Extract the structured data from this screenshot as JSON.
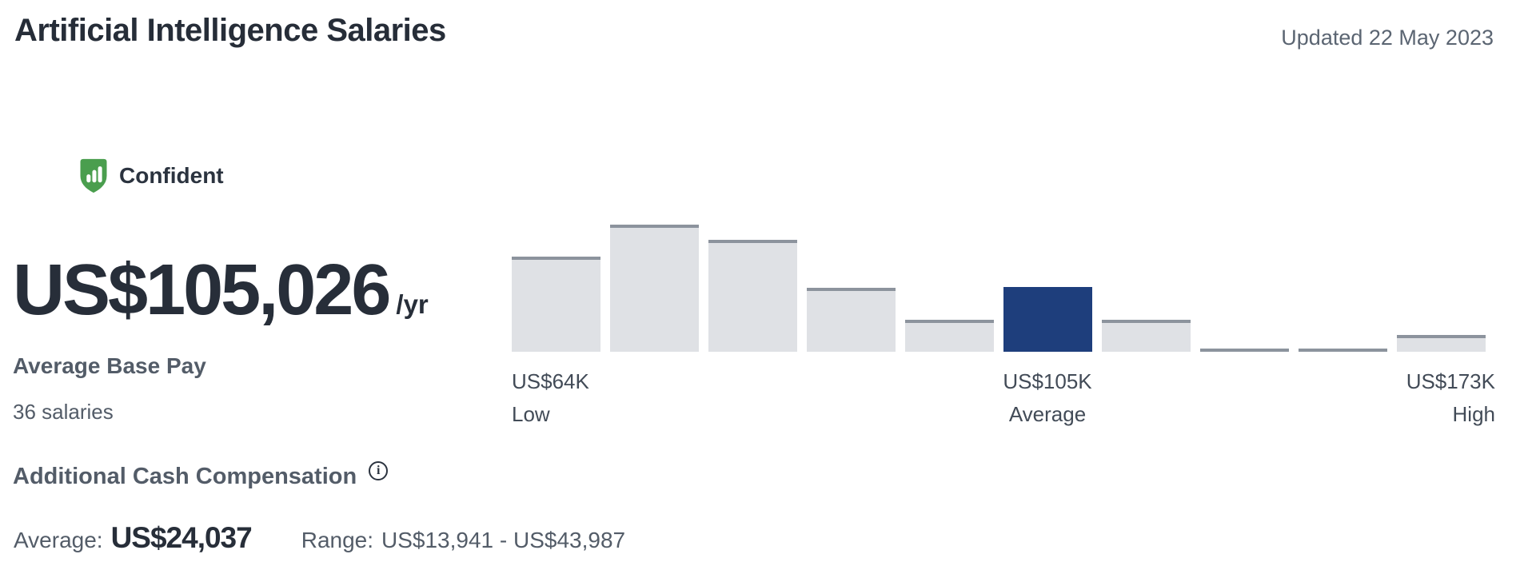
{
  "header": {
    "title": "Artificial Intelligence Salaries",
    "updated": "Updated 22 May 2023"
  },
  "confidence": {
    "label": "Confident",
    "shield_color": "#4a9e4e"
  },
  "base_pay": {
    "amount": "US$105,026",
    "period": "/yr",
    "label": "Average Base Pay",
    "sample_size": "36 salaries"
  },
  "additional_compensation": {
    "heading": "Additional Cash Compensation",
    "average_label": "Average:",
    "average_value": "US$24,037",
    "range_label": "Range:",
    "range_value": "US$13,941 - US$43,987"
  },
  "icons": {
    "confident_shield": "shield-with-bar-chart",
    "info": "circled-i"
  },
  "chart_data": {
    "type": "bar",
    "title": "Base pay distribution histogram",
    "values": [
      0.75,
      1.0,
      0.88,
      0.5,
      0.25,
      0.51,
      0.25,
      0.02,
      0.02,
      0.13
    ],
    "highlight_index": 5,
    "bar_color": "#dfe1e5",
    "bar_top_border": "#8c939d",
    "highlight_color": "#1e3e7c",
    "grid": false,
    "legend": false,
    "x_annotations": [
      {
        "value": "US$64K",
        "label": "Low",
        "position": "left"
      },
      {
        "value": "US$105K",
        "label": "Average",
        "position": "under-highlighted-bar"
      },
      {
        "value": "US$173K",
        "label": "High",
        "position": "right"
      }
    ]
  }
}
